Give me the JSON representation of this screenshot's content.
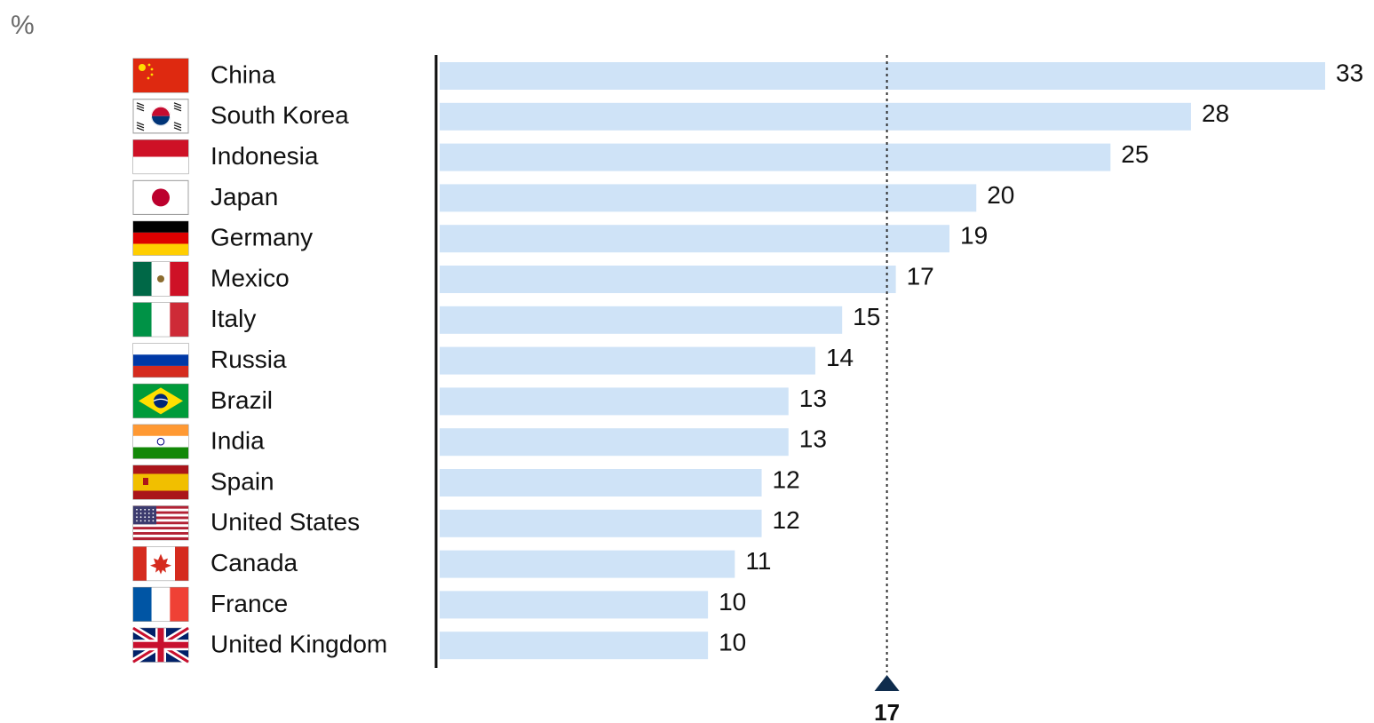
{
  "chart_data": {
    "type": "bar",
    "orientation": "horizontal",
    "unit": "%",
    "categories": [
      "China",
      "South Korea",
      "Indonesia",
      "Japan",
      "Germany",
      "Mexico",
      "Italy",
      "Russia",
      "Brazil",
      "India",
      "Spain",
      "United States",
      "Canada",
      "France",
      "United Kingdom"
    ],
    "values": [
      33,
      28,
      25,
      20,
      19,
      17,
      15,
      14,
      13,
      13,
      12,
      12,
      11,
      10,
      10
    ],
    "average_line": {
      "value": 17,
      "label": "17",
      "style": "dotted"
    },
    "xlim": [
      0,
      33
    ],
    "grid": false,
    "legend": "none",
    "colors": {
      "bar": "#cfe3f7",
      "axis": "#111111",
      "average_marker": "#0f2c4d",
      "label_text": "#111111"
    }
  },
  "flags": [
    {
      "country": "China",
      "icon": "china-flag-icon"
    },
    {
      "country": "South Korea",
      "icon": "south-korea-flag-icon"
    },
    {
      "country": "Indonesia",
      "icon": "indonesia-flag-icon"
    },
    {
      "country": "Japan",
      "icon": "japan-flag-icon"
    },
    {
      "country": "Germany",
      "icon": "germany-flag-icon"
    },
    {
      "country": "Mexico",
      "icon": "mexico-flag-icon"
    },
    {
      "country": "Italy",
      "icon": "italy-flag-icon"
    },
    {
      "country": "Russia",
      "icon": "russia-flag-icon"
    },
    {
      "country": "Brazil",
      "icon": "brazil-flag-icon"
    },
    {
      "country": "India",
      "icon": "india-flag-icon"
    },
    {
      "country": "Spain",
      "icon": "spain-flag-icon"
    },
    {
      "country": "United States",
      "icon": "united-states-flag-icon"
    },
    {
      "country": "Canada",
      "icon": "canada-flag-icon"
    },
    {
      "country": "France",
      "icon": "france-flag-icon"
    },
    {
      "country": "United Kingdom",
      "icon": "united-kingdom-flag-icon"
    }
  ]
}
